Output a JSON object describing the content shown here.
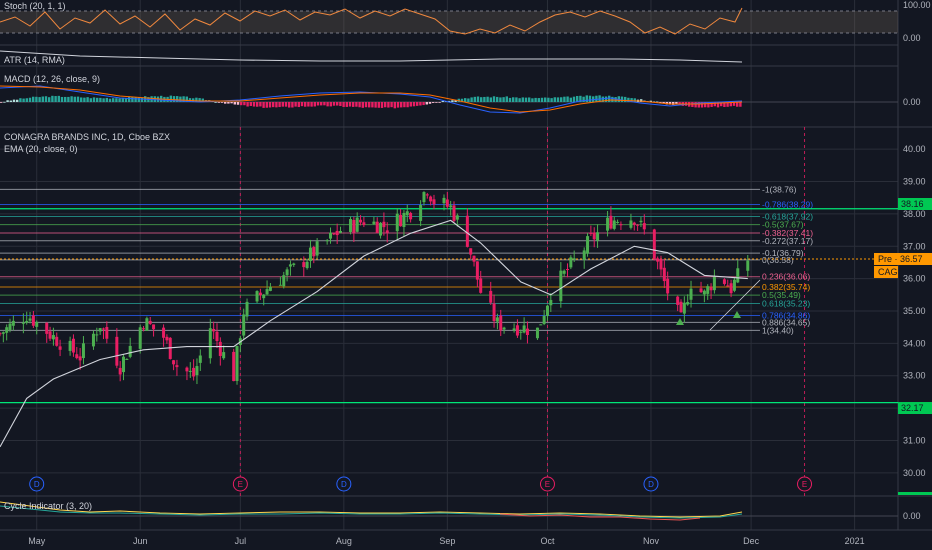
{
  "colors": {
    "background": "#131722",
    "grid": "#2a2e39",
    "up": "#4caf50",
    "down": "#e91e63",
    "ema": "#d1d4dc",
    "stoch": "#f0883e",
    "price_line": "#ff9800",
    "support_green": "#00e676",
    "fib_blue": "#2962ff"
  },
  "panes": {
    "stoch": {
      "label": "Stoch (20, 1, 1)",
      "ticks": [
        "100.00",
        "0.00"
      ]
    },
    "atr": {
      "label": "ATR (14, RMA)"
    },
    "macd": {
      "label": "MACD (12, 26, close, 9)",
      "ticks": [
        "0.00"
      ]
    },
    "cycle": {
      "label": "Cycle Indicator (3, 20)",
      "ticks": [
        "0.00"
      ]
    }
  },
  "main": {
    "title": "CONAGRA BRANDS INC, 1D, Cboe BZX",
    "ema_label": "EMA (20, close, 0)"
  },
  "price_badge": {
    "text": "Pre · 36.57",
    "value": 36.57
  },
  "symbol_badge": "CAG",
  "horizontal_levels": [
    {
      "value": 38.16,
      "label": "38.16"
    },
    {
      "value": 32.17,
      "label": "32.17"
    }
  ],
  "events": [
    {
      "letter": "D",
      "date": "2020-05-01"
    },
    {
      "letter": "E",
      "date": "2020-07-01"
    },
    {
      "letter": "D",
      "date": "2020-08-01"
    },
    {
      "letter": "E",
      "date": "2020-10-01"
    },
    {
      "letter": "D",
      "date": "2020-11-01"
    },
    {
      "letter": "E",
      "date": "2020-12-17"
    }
  ],
  "chart_data": {
    "type": "candlestick",
    "title": "CONAGRA BRANDS INC, 1D, Cboe BZX",
    "y_ticks": [
      "40.00",
      "39.00",
      "38.00",
      "37.00",
      "36.00",
      "35.00",
      "34.00",
      "33.00",
      "32.00",
      "31.00",
      "30.00"
    ],
    "ylim": [
      29.5,
      40.5
    ],
    "x_ticks": [
      "May",
      "Jun",
      "Jul",
      "Aug",
      "Sep",
      "Oct",
      "Nov",
      "Dec",
      "2021"
    ],
    "x_tick_dates": [
      "2020-05-01",
      "2020-06-01",
      "2020-07-01",
      "2020-08-01",
      "2020-09-01",
      "2020-10-01",
      "2020-11-01",
      "2020-12-01",
      "2021-01-01"
    ],
    "grid": true,
    "close_path": [
      {
        "date": "2020-04-20",
        "close": 34.3
      },
      {
        "date": "2020-04-28",
        "close": 34.9
      },
      {
        "date": "2020-05-06",
        "close": 34.2
      },
      {
        "date": "2020-05-14",
        "close": 33.6
      },
      {
        "date": "2020-05-20",
        "close": 34.6
      },
      {
        "date": "2020-05-26",
        "close": 33.3
      },
      {
        "date": "2020-06-02",
        "close": 34.7
      },
      {
        "date": "2020-06-08",
        "close": 34.2
      },
      {
        "date": "2020-06-12",
        "close": 33.3
      },
      {
        "date": "2020-06-17",
        "close": 33.0
      },
      {
        "date": "2020-06-22",
        "close": 34.5
      },
      {
        "date": "2020-06-29",
        "close": 33.0
      },
      {
        "date": "2020-07-02",
        "close": 35.0
      },
      {
        "date": "2020-07-10",
        "close": 35.8
      },
      {
        "date": "2020-07-17",
        "close": 36.3
      },
      {
        "date": "2020-07-24",
        "close": 36.9
      },
      {
        "date": "2020-07-31",
        "close": 37.5
      },
      {
        "date": "2020-08-07",
        "close": 37.8
      },
      {
        "date": "2020-08-14",
        "close": 37.6
      },
      {
        "date": "2020-08-21",
        "close": 38.1
      },
      {
        "date": "2020-08-26",
        "close": 38.8
      },
      {
        "date": "2020-08-28",
        "close": 38.4
      },
      {
        "date": "2020-09-02",
        "close": 38.2
      },
      {
        "date": "2020-09-07",
        "close": 37.2
      },
      {
        "date": "2020-09-11",
        "close": 35.6
      },
      {
        "date": "2020-09-16",
        "close": 34.6
      },
      {
        "date": "2020-09-23",
        "close": 34.5
      },
      {
        "date": "2020-09-28",
        "close": 34.4
      },
      {
        "date": "2020-10-02",
        "close": 35.6
      },
      {
        "date": "2020-10-08",
        "close": 36.4
      },
      {
        "date": "2020-10-14",
        "close": 37.2
      },
      {
        "date": "2020-10-20",
        "close": 37.8
      },
      {
        "date": "2020-10-27",
        "close": 37.9
      },
      {
        "date": "2020-10-31",
        "close": 37.3
      },
      {
        "date": "2020-11-06",
        "close": 35.6
      },
      {
        "date": "2020-11-10",
        "close": 34.7
      },
      {
        "date": "2020-11-13",
        "close": 35.9
      },
      {
        "date": "2020-11-17",
        "close": 35.5
      },
      {
        "date": "2020-11-21",
        "close": 36.2
      },
      {
        "date": "2020-11-25",
        "close": 35.7
      },
      {
        "date": "2020-11-30",
        "close": 36.6
      }
    ],
    "ema_path": [
      {
        "date": "2020-04-20",
        "value": 30.8
      },
      {
        "date": "2020-04-28",
        "value": 32.3
      },
      {
        "date": "2020-05-06",
        "value": 32.9
      },
      {
        "date": "2020-05-20",
        "value": 33.5
      },
      {
        "date": "2020-06-02",
        "value": 33.8
      },
      {
        "date": "2020-06-15",
        "value": 33.9
      },
      {
        "date": "2020-06-29",
        "value": 33.9
      },
      {
        "date": "2020-07-10",
        "value": 34.7
      },
      {
        "date": "2020-07-24",
        "value": 35.6
      },
      {
        "date": "2020-08-07",
        "value": 36.7
      },
      {
        "date": "2020-08-21",
        "value": 37.4
      },
      {
        "date": "2020-09-02",
        "value": 37.8
      },
      {
        "date": "2020-09-11",
        "value": 37.1
      },
      {
        "date": "2020-09-23",
        "value": 35.9
      },
      {
        "date": "2020-10-02",
        "value": 35.5
      },
      {
        "date": "2020-10-14",
        "value": 36.3
      },
      {
        "date": "2020-10-27",
        "value": 37.0
      },
      {
        "date": "2020-11-06",
        "value": 36.8
      },
      {
        "date": "2020-11-17",
        "value": 36.1
      },
      {
        "date": "2020-11-30",
        "value": 36.0
      }
    ],
    "fib_levels": [
      {
        "label": "-1(38.76)",
        "value": 38.76,
        "color": "#b2b5be"
      },
      {
        "label": "-0.786(38.29)",
        "value": 38.29,
        "color": "#2962ff"
      },
      {
        "label": "-0.618(37.92)",
        "value": 37.92,
        "color": "#26a69a"
      },
      {
        "label": "-0.5(37.67)",
        "value": 37.67,
        "color": "#4caf50"
      },
      {
        "label": "-0.382(37.41)",
        "value": 37.41,
        "color": "#f06292"
      },
      {
        "label": "-0.272(37.17)",
        "value": 37.17,
        "color": "#b2b5be"
      },
      {
        "label": "-0.1(36.79)",
        "value": 36.79,
        "color": "#b2b5be"
      },
      {
        "label": "0(36.58)",
        "value": 36.58,
        "color": "#b2b5be"
      },
      {
        "label": "0.236(36.06)",
        "value": 36.06,
        "color": "#f06292"
      },
      {
        "label": "0.382(35.74)",
        "value": 35.74,
        "color": "#ff9800"
      },
      {
        "label": "0.5(35.49)",
        "value": 35.49,
        "color": "#4caf50"
      },
      {
        "label": "0.618(35.23)",
        "value": 35.23,
        "color": "#26a69a"
      },
      {
        "label": "0.786(34.86)",
        "value": 34.86,
        "color": "#2962ff"
      },
      {
        "label": "0.886(34.65)",
        "value": 34.65,
        "color": "#b2b5be"
      },
      {
        "label": "1(34.40)",
        "value": 34.4,
        "color": "#b2b5be"
      }
    ]
  }
}
